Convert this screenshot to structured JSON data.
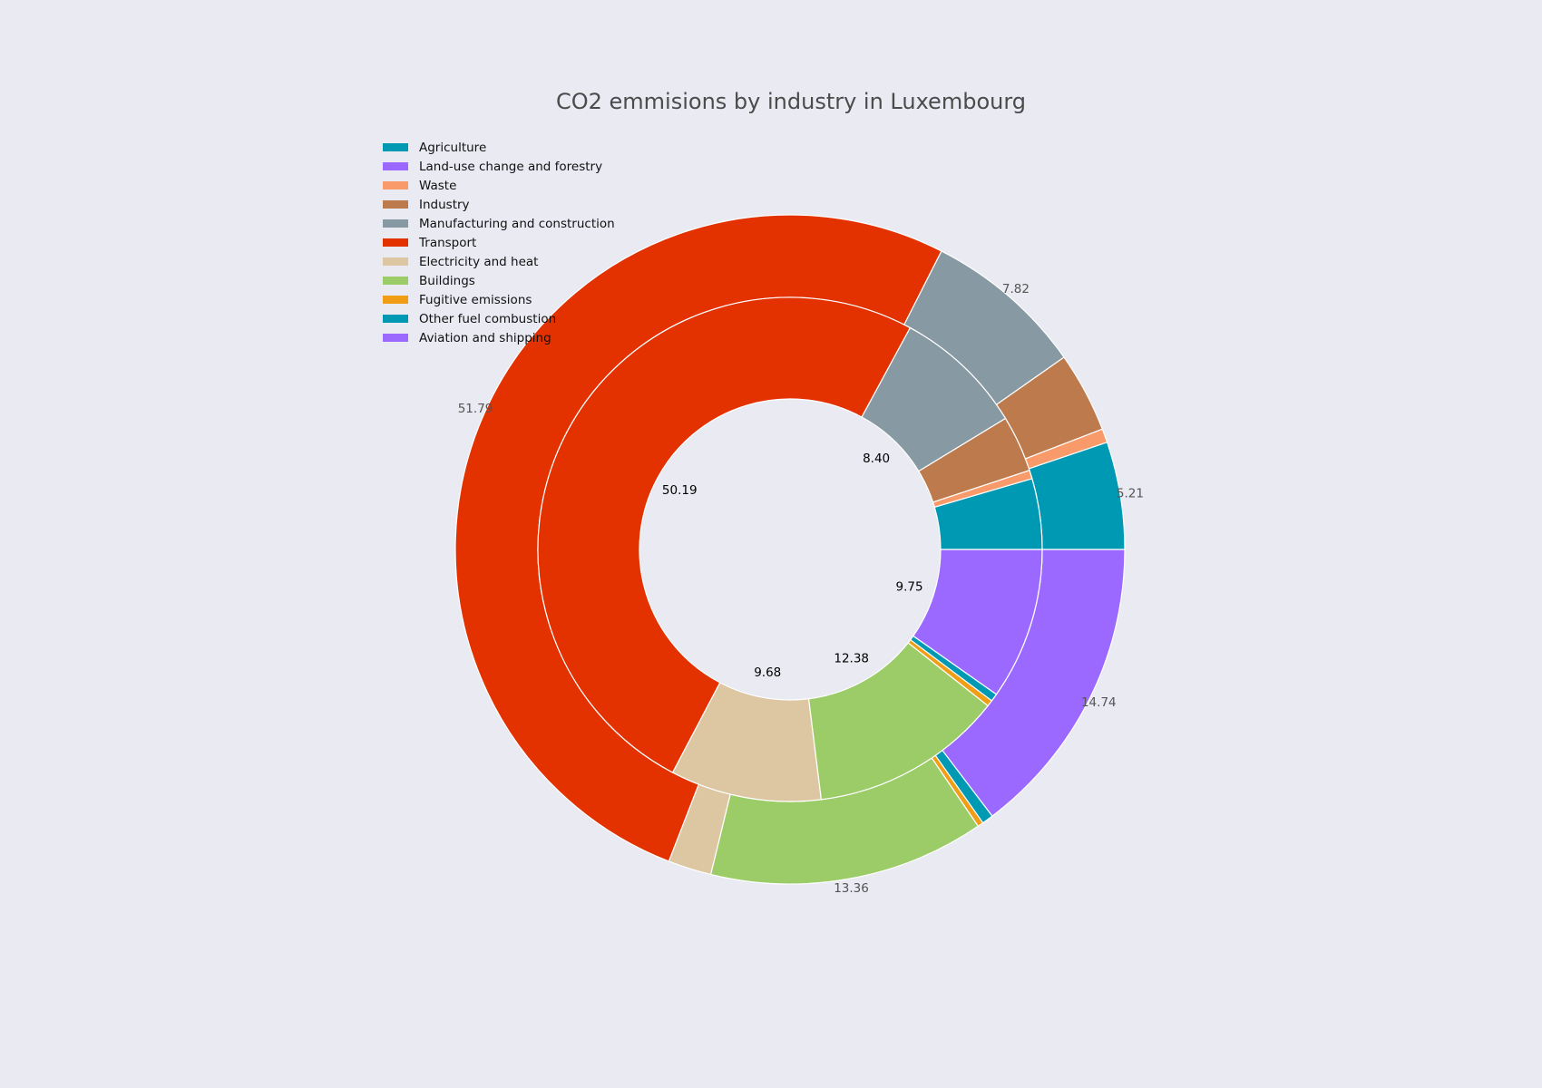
{
  "chart_data": {
    "type": "pie",
    "subtype": "nested-donut",
    "title": "CO2 emmisions by industry in Luxembourg",
    "legend": {
      "placement": "top-left",
      "entries": [
        {
          "label": "Agriculture",
          "color": "#0099b4"
        },
        {
          "label": "Land-use change and forestry",
          "color": "#9b69ff"
        },
        {
          "label": "Waste",
          "color": "#f89a6a"
        },
        {
          "label": "Industry",
          "color": "#bd7b4d"
        },
        {
          "label": "Manufacturing and construction",
          "color": "#8799a3"
        },
        {
          "label": "Transport",
          "color": "#e33100"
        },
        {
          "label": "Electricity and heat",
          "color": "#dcc7a2"
        },
        {
          "label": "Buildings",
          "color": "#9bcc67"
        },
        {
          "label": "Fugitive emissions",
          "color": "#f29d16"
        },
        {
          "label": "Other fuel combustion",
          "color": "#0099b4"
        },
        {
          "label": "Aviation and shipping",
          "color": "#9b69ff"
        }
      ]
    },
    "outer_ring": {
      "slices": [
        {
          "label": "Aviation and shipping",
          "value": 14.74,
          "color": "#9b69ff"
        },
        {
          "label": "Other fuel combustion",
          "value": 0.55,
          "color": "#0099b4"
        },
        {
          "label": "Fugitive emissions",
          "value": 0.28,
          "color": "#f29d16"
        },
        {
          "label": "Buildings",
          "value": 13.36,
          "color": "#9bcc67"
        },
        {
          "label": "Electricity and heat",
          "value": 2.1,
          "color": "#dcc7a2"
        },
        {
          "label": "Transport",
          "value": 51.79,
          "color": "#e33100"
        },
        {
          "label": "Manufacturing and construction",
          "value": 7.82,
          "color": "#8799a3"
        },
        {
          "label": "Industry",
          "value": 3.9,
          "color": "#bd7b4d"
        },
        {
          "label": "Waste",
          "value": 0.67,
          "color": "#f89a6a"
        },
        {
          "label": "Agriculture",
          "value": 5.21,
          "color": "#0099b4"
        }
      ],
      "shown_labels": [
        {
          "label": "Aviation and shipping",
          "text": "14.74"
        },
        {
          "label": "Buildings",
          "text": "13.36"
        },
        {
          "label": "Transport",
          "text": "51.79"
        },
        {
          "label": "Manufacturing and construction",
          "text": "7.82"
        },
        {
          "label": "Agriculture",
          "text": "5.21"
        }
      ]
    },
    "inner_ring": {
      "slices": [
        {
          "label": "Aviation and shipping",
          "value": 9.75,
          "color": "#9b69ff"
        },
        {
          "label": "Other fuel combustion",
          "value": 0.5,
          "color": "#0099b4"
        },
        {
          "label": "Fugitive emissions",
          "value": 0.4,
          "color": "#f29d16"
        },
        {
          "label": "Buildings",
          "value": 12.38,
          "color": "#9bcc67"
        },
        {
          "label": "Electricity and heat",
          "value": 9.68,
          "color": "#dcc7a2"
        },
        {
          "label": "Transport",
          "value": 50.19,
          "color": "#e33100"
        },
        {
          "label": "Manufacturing and construction",
          "value": 8.4,
          "color": "#8799a3"
        },
        {
          "label": "Industry",
          "value": 3.62,
          "color": "#bd7b4d"
        },
        {
          "label": "Waste",
          "value": 0.55,
          "color": "#f89a6a"
        },
        {
          "label": "Agriculture",
          "value": 4.53,
          "color": "#0099b4"
        }
      ],
      "shown_labels": [
        {
          "label": "Aviation and shipping",
          "text": "9.75"
        },
        {
          "label": "Buildings",
          "text": "12.38"
        },
        {
          "label": "Electricity and heat",
          "text": "9.68"
        },
        {
          "label": "Transport",
          "text": "50.19"
        },
        {
          "label": "Manufacturing and construction",
          "text": "8.40"
        }
      ]
    },
    "start_angle_deg": 0,
    "direction": "clockwise"
  }
}
